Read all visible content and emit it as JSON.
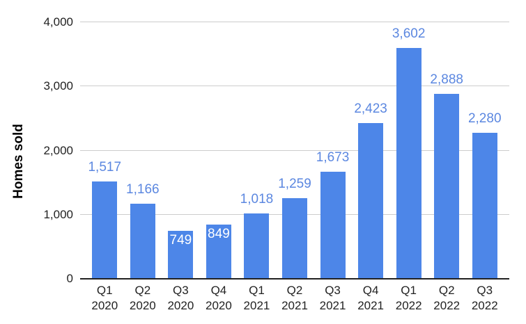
{
  "chart_data": {
    "type": "bar",
    "title": "",
    "xlabel": "",
    "ylabel": "Homes sold",
    "ylim": [
      0,
      4000
    ],
    "grid": true,
    "legend": "none",
    "ytick_values": [
      0,
      1000,
      2000,
      3000,
      4000
    ],
    "ytick_labels": [
      "0",
      "1,000",
      "2,000",
      "3,000",
      "4,000"
    ],
    "categories": [
      "Q1 2020",
      "Q2 2020",
      "Q3 2020",
      "Q4 2020",
      "Q1 2021",
      "Q2 2021",
      "Q3 2021",
      "Q4 2021",
      "Q1 2022",
      "Q2 2022",
      "Q3 2022"
    ],
    "category_lines": [
      [
        "Q1",
        "2020"
      ],
      [
        "Q2",
        "2020"
      ],
      [
        "Q3",
        "2020"
      ],
      [
        "Q4",
        "2020"
      ],
      [
        "Q1",
        "2021"
      ],
      [
        "Q2",
        "2021"
      ],
      [
        "Q3",
        "2021"
      ],
      [
        "Q4",
        "2021"
      ],
      [
        "Q1",
        "2022"
      ],
      [
        "Q2",
        "2022"
      ],
      [
        "Q3",
        "2022"
      ]
    ],
    "values": [
      1517,
      1166,
      749,
      849,
      1018,
      1259,
      1673,
      2423,
      3602,
      2888,
      2280
    ],
    "value_labels": [
      "1,517",
      "1,166",
      "749",
      "849",
      "1,018",
      "1,259",
      "1,673",
      "2,423",
      "3,602",
      "2,888",
      "2,280"
    ],
    "label_positions": [
      "above",
      "above",
      "inside",
      "inside",
      "above",
      "above",
      "above",
      "above",
      "above",
      "above",
      "above"
    ],
    "colors": {
      "bar": "#4d86e8",
      "value_label_outside": "#5b87e0",
      "value_label_inside": "#ffffff",
      "gridline": "#cccccc",
      "axis_line": "#212121",
      "axis_text": "#222222",
      "axis_title_text": "#000000",
      "background": "#ffffff"
    }
  }
}
